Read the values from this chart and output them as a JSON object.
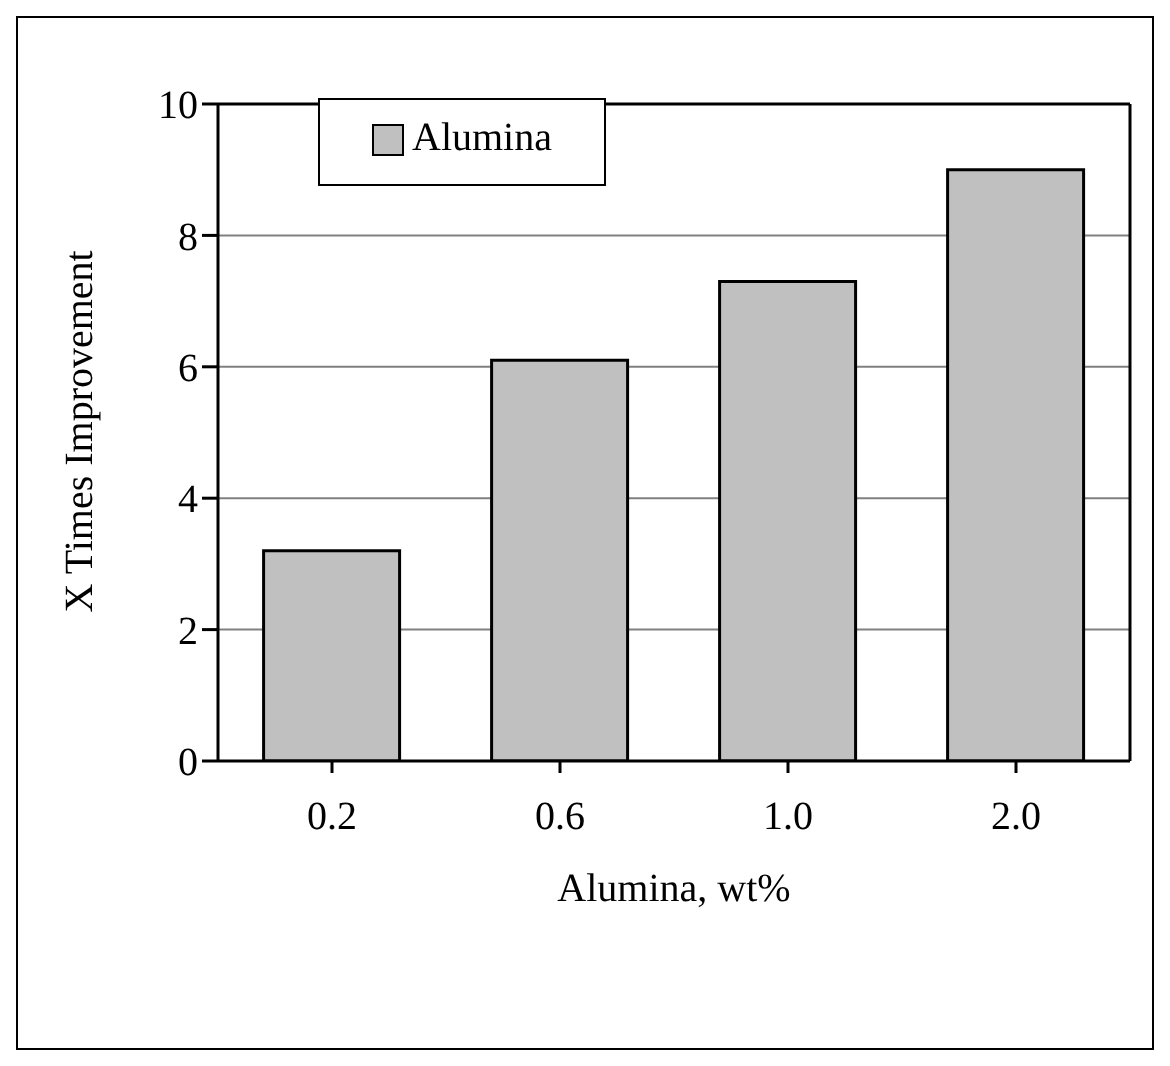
{
  "chart_data": {
    "type": "bar",
    "xlabel": "Alumina, wt%",
    "ylabel": "X Times Improvement",
    "categories": [
      "0.2",
      "0.6",
      "1.0",
      "2.0"
    ],
    "series": [
      {
        "name": "Alumina",
        "color": "#c0c0c0",
        "values": [
          3.2,
          6.1,
          7.3,
          9.0
        ]
      }
    ],
    "ylim": [
      0,
      10
    ],
    "yticks": [
      0,
      2,
      4,
      6,
      8,
      10
    ],
    "grid": "y",
    "legend": "top left"
  }
}
